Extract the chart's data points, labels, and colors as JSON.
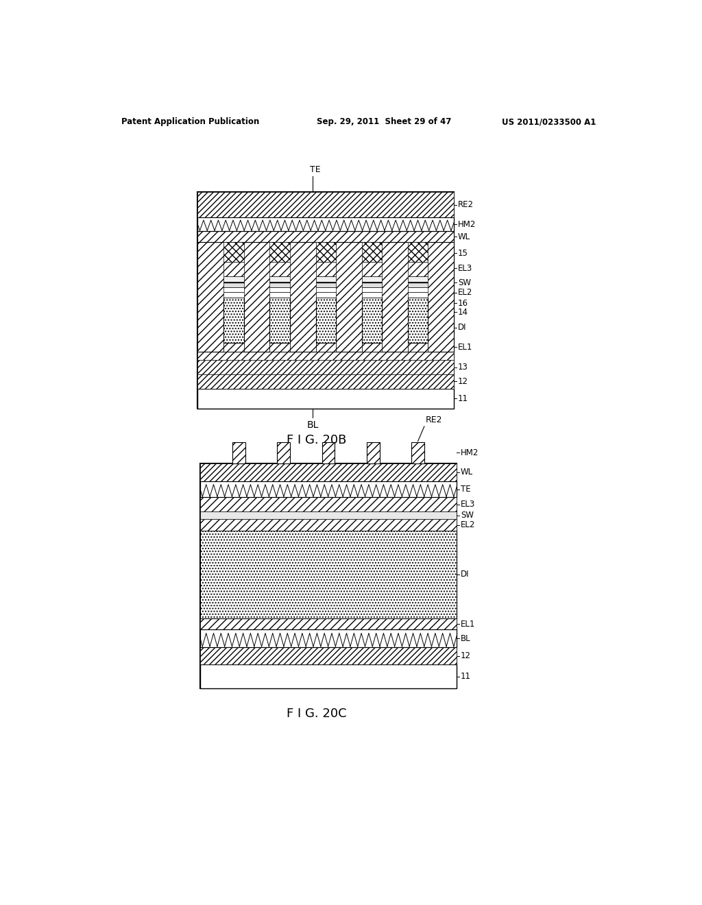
{
  "header_left": "Patent Application Publication",
  "header_mid": "Sep. 29, 2011  Sheet 29 of 47",
  "header_right": "US 2011/0233500 A1",
  "fig20b_label": "F I G. 20B",
  "fig20c_label": "F I G. 20C",
  "bg_color": "#ffffff"
}
